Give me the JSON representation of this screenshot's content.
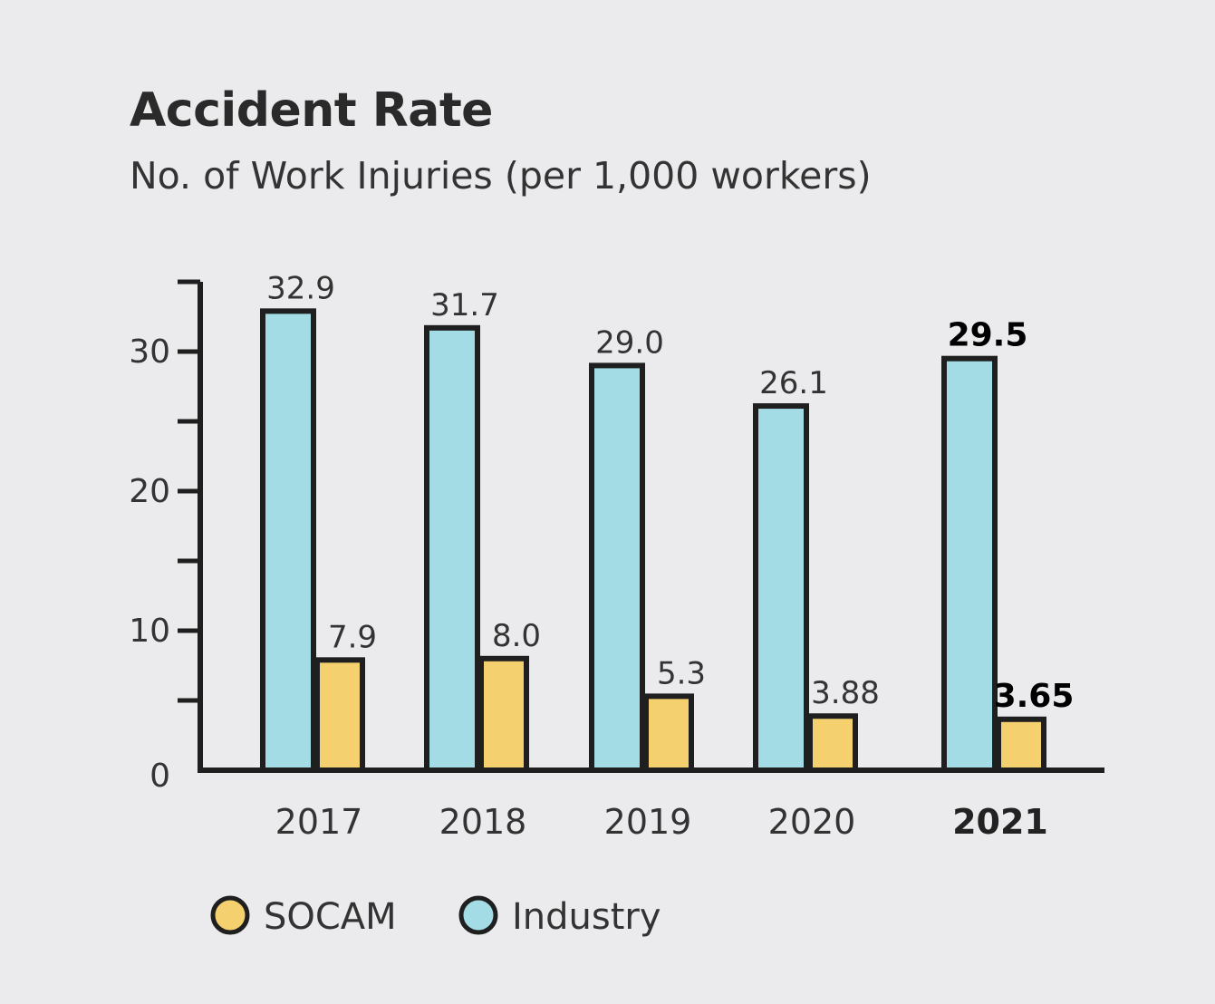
{
  "chart_data": {
    "type": "bar",
    "title": "Accident Rate",
    "subtitle": "No. of Work Injuries (per 1,000 workers)",
    "xlabel": "",
    "ylabel": "",
    "categories": [
      "2017",
      "2018",
      "2019",
      "2020",
      "2021"
    ],
    "highlight_category": "2021",
    "series": [
      {
        "name": "Industry",
        "color": "#a3dce4",
        "values": [
          32.9,
          31.7,
          29.0,
          26.1,
          29.5
        ],
        "labels": [
          "32.9",
          "31.7",
          "29.0",
          "26.1",
          "29.5"
        ]
      },
      {
        "name": "SOCAM",
        "color": "#f4d06f",
        "values": [
          7.9,
          8.0,
          5.3,
          3.88,
          3.65
        ],
        "labels": [
          "7.9",
          "8.0",
          "5.3",
          "3.88",
          "3.65"
        ]
      }
    ],
    "ylim": [
      0,
      35
    ],
    "yticks": [
      0,
      10,
      20,
      30
    ],
    "minor_ticks": [
      5,
      15,
      25,
      35
    ],
    "legend": [
      {
        "name": "SOCAM",
        "color": "#f4d06f"
      },
      {
        "name": "Industry",
        "color": "#a3dce4"
      }
    ],
    "legend_position": "bottom-left",
    "outline_color": "#1f1f1f"
  }
}
